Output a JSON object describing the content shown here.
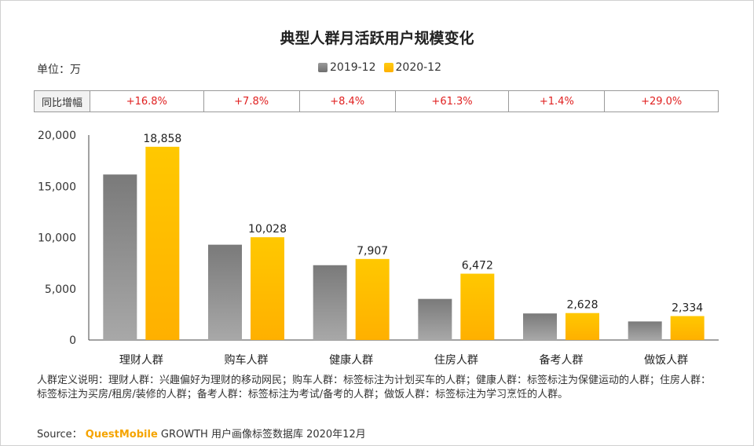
{
  "title": "典型人群月活跃用户规模变化",
  "unit": "单位：万",
  "yoy": {
    "label": "同比增幅",
    "values": [
      "+16.8%",
      "+7.8%",
      "+8.4%",
      "+61.3%",
      "+1.4%",
      "+29.0%"
    ]
  },
  "colors": {
    "series_2019": "#8a8a8a",
    "series_2020": "#ffc000",
    "yoy_text": "#e02020"
  },
  "chart_data": {
    "type": "bar",
    "categories": [
      "理财人群",
      "购车人群",
      "健康人群",
      "住房人群",
      "备考人群",
      "做饭人群"
    ],
    "series": [
      {
        "name": "2019-12",
        "values": [
          16150,
          9300,
          7300,
          4010,
          2590,
          1810
        ]
      },
      {
        "name": "2020-12",
        "values": [
          18858,
          10028,
          7907,
          6472,
          2628,
          2334
        ],
        "labels": [
          "18,858",
          "10,028",
          "7,907",
          "6,472",
          "2,628",
          "2,334"
        ]
      }
    ],
    "yticks": [
      "0",
      "5,000",
      "10,000",
      "15,000",
      "20,000"
    ],
    "ylim": [
      0,
      20000
    ],
    "legend_position": "top-center"
  },
  "notes": "人群定义说明：理财人群：兴趣偏好为理财的移动网民；购车人群：标签标注为计划买车的人群；健康人群：标签标注为保健运动的人群；住房人群：标签标注为买房/租房/装修的人群；备考人群：标签标注为考试/备考的人群；做饭人群：标签标注为学习烹饪的人群。",
  "source": {
    "prefix": "Source：",
    "brand": "QuestMobile",
    "text": "GROWTH 用户画像标签数据库 2020年12月"
  }
}
